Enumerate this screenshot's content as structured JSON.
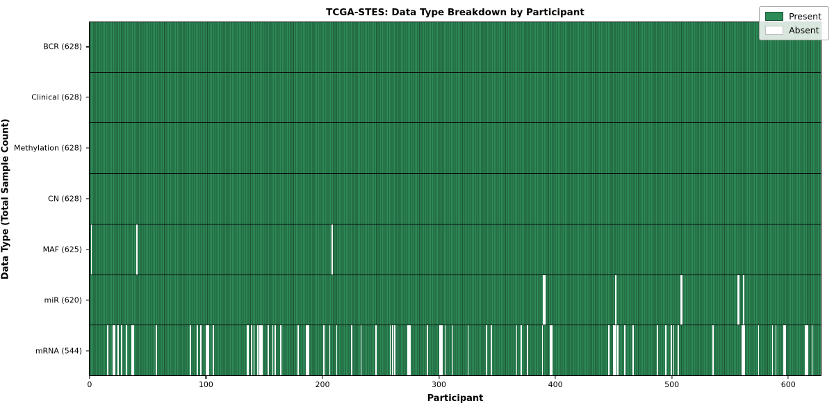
{
  "title": "TCGA-STES: Data Type Breakdown by Participant",
  "xlabel": "Participant",
  "ylabel": "Data Type (Total Sample Count)",
  "legend": {
    "present_label": "Present",
    "absent_label": "Absent"
  },
  "colors": {
    "present": "#2e8b57",
    "present_edge": "#1b5636",
    "absent": "#ffffff",
    "absent_edge": "#bdbdbd",
    "separator": "#0a0a0a"
  },
  "chart_data": {
    "type": "heatmap",
    "title": "TCGA-STES: Data Type Breakdown by Participant",
    "xlabel": "Participant",
    "ylabel": "Data Type (Total Sample Count)",
    "n_participants": 628,
    "xlim": [
      -0.5,
      628.5
    ],
    "x_ticks": [
      0,
      100,
      200,
      300,
      400,
      500,
      600
    ],
    "legend_position": "upper right",
    "grid": false,
    "rows": [
      {
        "label": "BCR (628)",
        "name": "BCR",
        "present_count": 628,
        "absent": []
      },
      {
        "label": "Clinical (628)",
        "name": "Clinical",
        "present_count": 628,
        "absent": []
      },
      {
        "label": "Methylation (628)",
        "name": "Methylation",
        "present_count": 628,
        "absent": []
      },
      {
        "label": "CN (628)",
        "name": "CN",
        "present_count": 628,
        "absent": []
      },
      {
        "label": "MAF (625)",
        "name": "MAF",
        "present_count": 625,
        "absent": [
          1,
          40,
          208
        ]
      },
      {
        "label": "miR (620)",
        "name": "miR",
        "present_count": 620,
        "absent": [
          390,
          391,
          452,
          508,
          509,
          557,
          558,
          562
        ]
      },
      {
        "label": "mRNA (544)",
        "name": "mRNA",
        "present_count": 544,
        "absent": [
          15,
          20,
          21,
          24,
          27,
          31,
          36,
          37,
          57,
          86,
          92,
          95,
          100,
          101,
          102,
          106,
          135,
          136,
          139,
          141,
          144,
          146,
          147,
          148,
          153,
          157,
          159,
          164,
          179,
          186,
          187,
          188,
          201,
          206,
          212,
          225,
          233,
          246,
          258,
          260,
          262,
          273,
          274,
          275,
          290,
          301,
          302,
          303,
          306,
          312,
          325,
          341,
          345,
          367,
          371,
          376,
          389,
          396,
          397,
          446,
          450,
          451,
          452,
          454,
          460,
          467,
          488,
          495,
          500,
          502,
          506,
          536,
          561,
          562,
          563,
          575,
          587,
          590,
          597,
          598,
          615,
          616,
          617,
          621
        ]
      }
    ]
  }
}
